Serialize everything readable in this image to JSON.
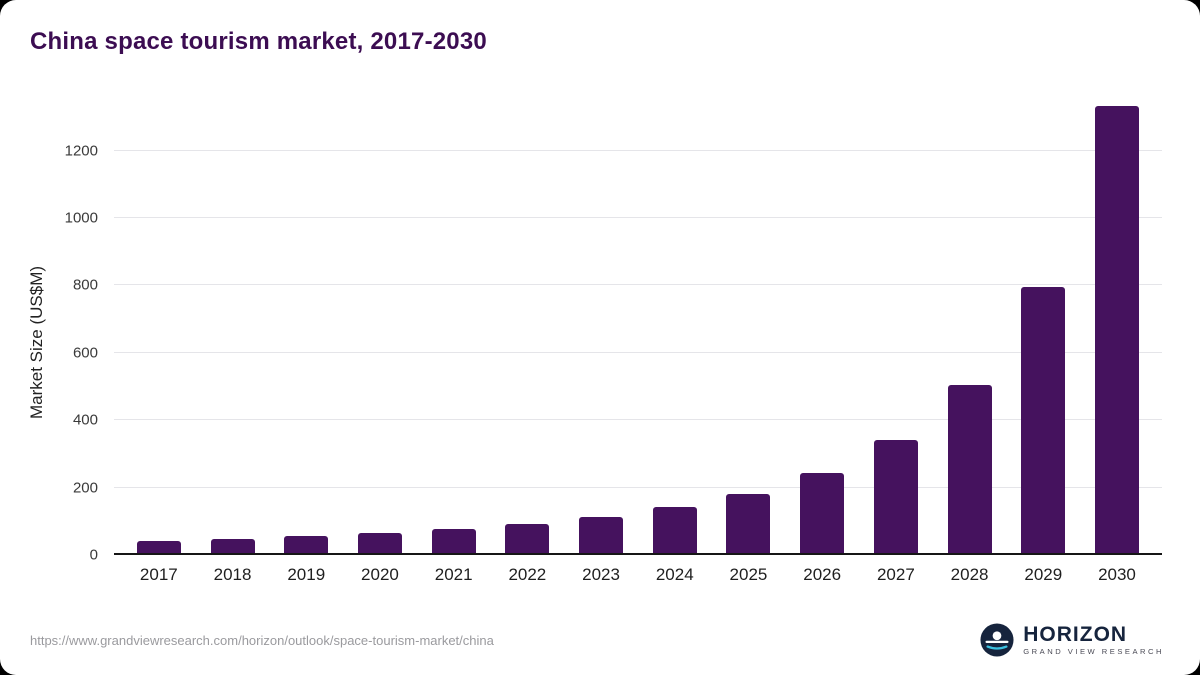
{
  "title": "China space tourism market, 2017-2030",
  "footer": {
    "source_url": "https://www.grandviewresearch.com/horizon/outlook/space-tourism-market/china",
    "logo": {
      "name": "HORIZON",
      "subtitle": "GRAND VIEW RESEARCH"
    }
  },
  "colors": {
    "bar": "#45125e",
    "title": "#3c0d52",
    "grid": "#e5e5e9",
    "axis": "#161616",
    "tick": "#3a3a3a",
    "url": "#9a9a9e",
    "logo_navy": "#16243d",
    "logo_teal": "#3cc1e0"
  },
  "chart_data": {
    "type": "bar",
    "title": "China space tourism market, 2017-2030",
    "xlabel": "",
    "ylabel": "Market Size (US$M)",
    "categories": [
      "2017",
      "2018",
      "2019",
      "2020",
      "2021",
      "2022",
      "2023",
      "2024",
      "2025",
      "2026",
      "2027",
      "2028",
      "2029",
      "2030"
    ],
    "values": [
      41,
      48,
      56,
      64,
      76,
      92,
      114,
      141,
      180,
      242,
      340,
      505,
      795,
      1332
    ],
    "yticks": [
      0,
      200,
      400,
      600,
      800,
      1000,
      1200
    ],
    "ylim": [
      0,
      1350
    ],
    "grid": true,
    "legend": false
  }
}
